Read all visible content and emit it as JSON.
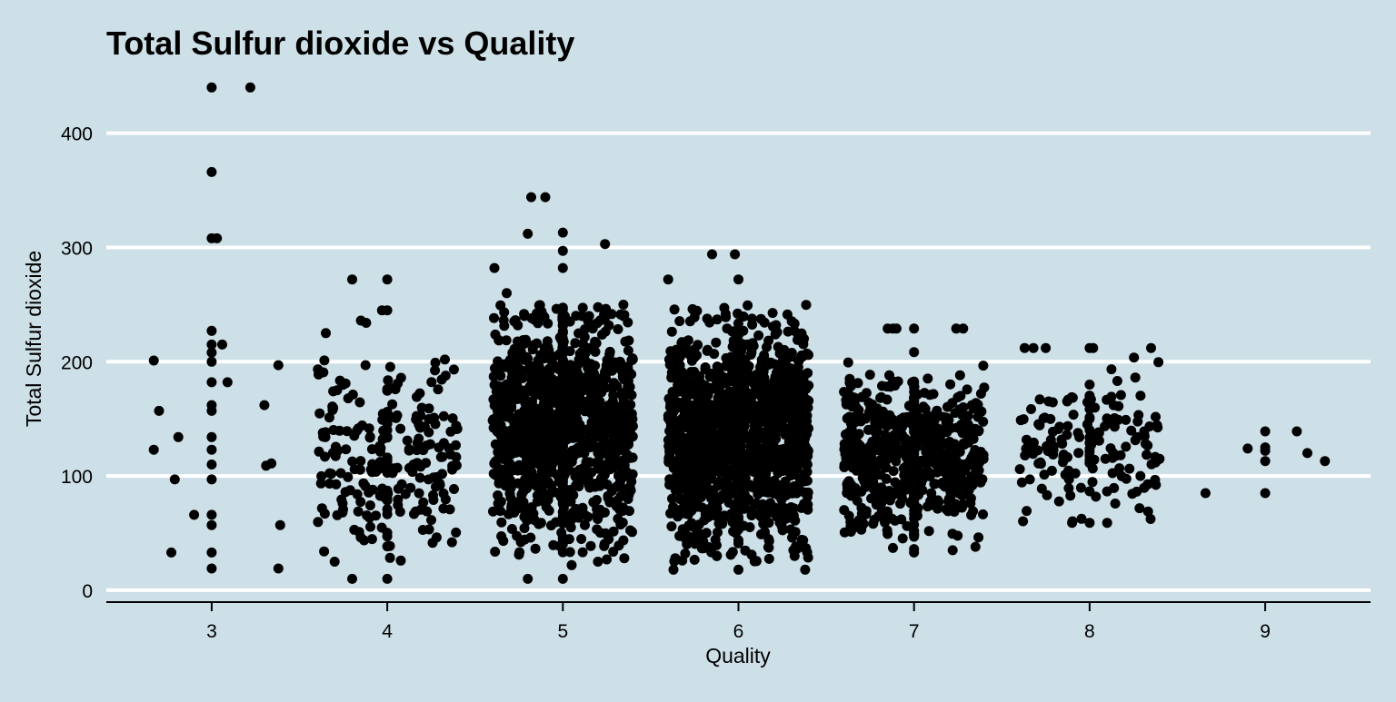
{
  "chart_data": {
    "type": "scatter",
    "title": "Total Sulfur dioxide vs Quality",
    "xlabel": "Quality",
    "ylabel": "Total Sulfur dioxide",
    "x_ticks": [
      3,
      4,
      5,
      6,
      7,
      8,
      9
    ],
    "y_ticks": [
      0,
      100,
      200,
      300,
      400
    ],
    "xlim": [
      2.4,
      9.6
    ],
    "ylim": [
      -8,
      445
    ],
    "grid": {
      "horizontal": true,
      "vertical": false
    },
    "jitter_width": 0.4,
    "colors": {
      "background": "#cddfe7",
      "grid": "#ffffff",
      "point": "#000000",
      "axis": "#000000"
    },
    "series": [
      {
        "points": [
          [
            3.0,
            440
          ],
          [
            3.22,
            440
          ],
          [
            3.0,
            366
          ],
          [
            3.0,
            308
          ],
          [
            3.03,
            308
          ],
          [
            3.0,
            227
          ],
          [
            3.0,
            215
          ],
          [
            3.06,
            215
          ],
          [
            3.0,
            208
          ],
          [
            3.0,
            200
          ],
          [
            3.09,
            182
          ],
          [
            3.0,
            182
          ],
          [
            2.67,
            201
          ],
          [
            2.7,
            157
          ],
          [
            3.0,
            162
          ],
          [
            3.0,
            157
          ],
          [
            2.81,
            134
          ],
          [
            3.0,
            134
          ],
          [
            2.67,
            123
          ],
          [
            3.0,
            123
          ],
          [
            3.0,
            110
          ],
          [
            3.31,
            109
          ],
          [
            3.34,
            111
          ],
          [
            2.79,
            97
          ],
          [
            3.0,
            97
          ],
          [
            2.9,
            66
          ],
          [
            3.0,
            66
          ],
          [
            3.0,
            57
          ],
          [
            2.77,
            33
          ],
          [
            3.0,
            33
          ],
          [
            3.0,
            19
          ],
          [
            3.39,
            57
          ],
          [
            3.38,
            19
          ],
          [
            3.38,
            197
          ],
          [
            3.3,
            162
          ]
        ],
        "clusters": [
          {
            "x": 4,
            "n": 230,
            "ymin": 25,
            "ymax": 210,
            "center": 120,
            "spread": 45
          },
          {
            "x": 5,
            "n": 1200,
            "ymin": 30,
            "ymax": 250,
            "center": 145,
            "spread": 48
          },
          {
            "x": 6,
            "n": 1500,
            "ymin": 25,
            "ymax": 250,
            "center": 135,
            "spread": 45
          },
          {
            "x": 7,
            "n": 650,
            "ymin": 45,
            "ymax": 215,
            "center": 120,
            "spread": 32
          },
          {
            "x": 8,
            "n": 160,
            "ymin": 60,
            "ymax": 205,
            "center": 125,
            "spread": 30
          }
        ],
        "extra_points": [
          [
            4.0,
            272
          ],
          [
            3.8,
            272
          ],
          [
            4.0,
            245
          ],
          [
            3.97,
            245
          ],
          [
            3.85,
            236
          ],
          [
            3.88,
            234
          ],
          [
            3.65,
            225
          ],
          [
            3.8,
            10
          ],
          [
            4.0,
            10
          ],
          [
            3.64,
            34
          ],
          [
            3.7,
            25
          ],
          [
            4.82,
            344
          ],
          [
            4.9,
            344
          ],
          [
            5.0,
            313
          ],
          [
            4.8,
            312
          ],
          [
            5.0,
            297
          ],
          [
            5.24,
            303
          ],
          [
            5.0,
            282
          ],
          [
            4.61,
            282
          ],
          [
            4.68,
            260
          ],
          [
            5.0,
            10
          ],
          [
            4.8,
            10
          ],
          [
            5.05,
            22
          ],
          [
            5.2,
            25
          ],
          [
            5.25,
            27
          ],
          [
            5.35,
            28
          ],
          [
            5.98,
            294
          ],
          [
            5.85,
            294
          ],
          [
            5.6,
            272
          ],
          [
            6.0,
            272
          ],
          [
            6.0,
            18
          ],
          [
            5.63,
            18
          ],
          [
            5.64,
            28
          ],
          [
            6.38,
            18
          ],
          [
            6.32,
            30
          ],
          [
            6.15,
            50
          ],
          [
            6.88,
            229
          ],
          [
            6.9,
            229
          ],
          [
            7.0,
            229
          ],
          [
            6.85,
            229
          ],
          [
            7.24,
            229
          ],
          [
            7.28,
            229
          ],
          [
            7.0,
            36
          ],
          [
            7.0,
            33
          ],
          [
            6.88,
            37
          ],
          [
            7.22,
            35
          ],
          [
            7.35,
            38
          ],
          [
            6.66,
            55
          ],
          [
            6.7,
            53
          ],
          [
            7.63,
            212
          ],
          [
            7.68,
            212
          ],
          [
            7.75,
            212
          ],
          [
            8.0,
            212
          ],
          [
            8.02,
            212
          ],
          [
            8.35,
            212
          ],
          [
            7.9,
            59
          ],
          [
            8.0,
            59
          ],
          [
            8.1,
            59
          ],
          [
            8.66,
            85
          ],
          [
            9.0,
            85
          ],
          [
            9.0,
            139
          ],
          [
            9.0,
            125
          ],
          [
            8.9,
            124
          ],
          [
            9.0,
            113
          ],
          [
            9.0,
            122
          ],
          [
            9.18,
            139
          ],
          [
            9.24,
            120
          ],
          [
            9.34,
            113
          ]
        ]
      }
    ]
  }
}
